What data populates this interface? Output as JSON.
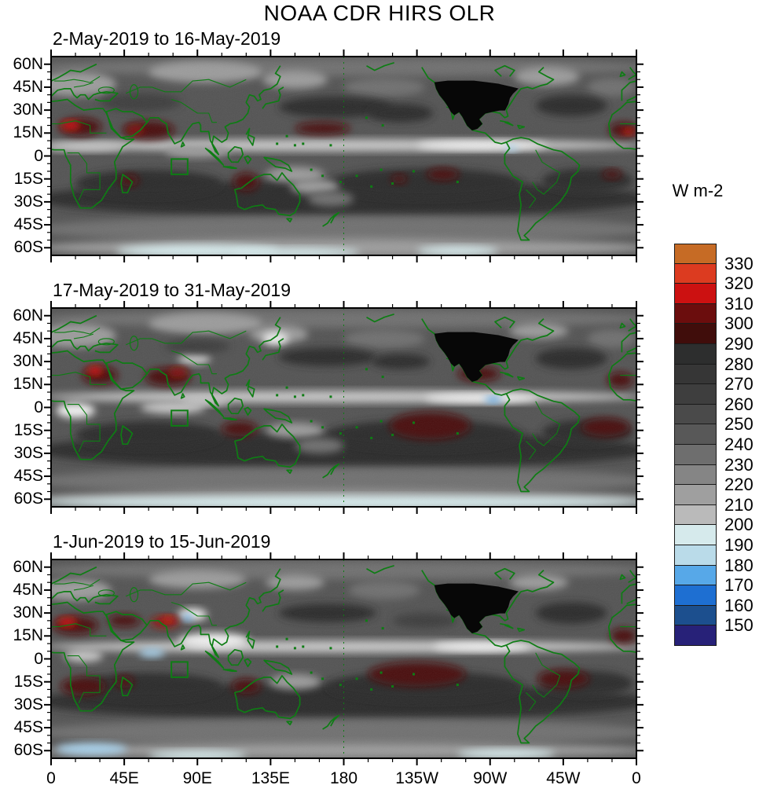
{
  "chart_data": {
    "type": "heatmap",
    "title": "NOAA CDR HIRS OLR",
    "grid": false,
    "panels": [
      {
        "label": "2-May-2019 to 16-May-2019",
        "features": [
          [
            180,
            58,
            190,
            6,
            "l1"
          ],
          [
            180,
            -28,
            190,
            12,
            "d2"
          ],
          [
            60,
            -18,
            45,
            9,
            "d2"
          ],
          [
            230,
            -18,
            60,
            10,
            "d2"
          ],
          [
            330,
            -16,
            28,
            8,
            "d2"
          ],
          [
            180,
            -48,
            190,
            9,
            "l1"
          ],
          [
            180,
            -60,
            190,
            6,
            "l2"
          ],
          [
            90,
            -62,
            50,
            4,
            "cy"
          ],
          [
            250,
            -62,
            25,
            3,
            "cy"
          ],
          [
            150,
            -63,
            40,
            3,
            "cy"
          ],
          [
            15,
            47,
            25,
            8,
            "l2"
          ],
          [
            95,
            55,
            35,
            7,
            "l2"
          ],
          [
            150,
            50,
            20,
            6,
            "l2"
          ],
          [
            205,
            45,
            25,
            6,
            "l1"
          ],
          [
            305,
            52,
            20,
            6,
            "l2"
          ],
          [
            345,
            45,
            15,
            6,
            "l1"
          ],
          [
            175,
            32,
            35,
            7,
            "d2"
          ],
          [
            215,
            28,
            20,
            6,
            "d2"
          ],
          [
            320,
            33,
            22,
            7,
            "d2"
          ],
          [
            55,
            35,
            25,
            6,
            "d1"
          ],
          [
            180,
            7,
            185,
            4,
            "l3"
          ],
          [
            265,
            7,
            40,
            3,
            "w"
          ],
          [
            20,
            6,
            25,
            3,
            "l3"
          ],
          [
            90,
            3,
            20,
            4,
            "l2"
          ],
          [
            283,
            5,
            4,
            2,
            "bl"
          ],
          [
            18,
            19,
            13,
            6,
            "r1"
          ],
          [
            12,
            20,
            6,
            3,
            "r3"
          ],
          [
            60,
            17,
            16,
            6,
            "r1"
          ],
          [
            52,
            17,
            5,
            3,
            "r2"
          ],
          [
            352,
            17,
            9,
            5,
            "r1"
          ],
          [
            355,
            16,
            4,
            2,
            "r3"
          ],
          [
            167,
            18,
            17,
            4,
            "r1"
          ],
          [
            120,
            -17,
            8,
            6,
            "r1"
          ],
          [
            48,
            -16,
            6,
            4,
            "r1"
          ],
          [
            241,
            -12,
            10,
            4,
            "r1"
          ],
          [
            214,
            -15,
            5,
            3,
            "r1"
          ],
          [
            345,
            -12,
            6,
            3,
            "r1"
          ],
          [
            150,
            -12,
            18,
            5,
            "l2"
          ],
          [
            162,
            -20,
            15,
            5,
            "l2"
          ],
          [
            172,
            -28,
            14,
            5,
            "l1"
          ]
        ]
      },
      {
        "label": "17-May-2019 to 31-May-2019",
        "features": [
          [
            180,
            58,
            190,
            6,
            "l1"
          ],
          [
            180,
            -28,
            190,
            12,
            "d2"
          ],
          [
            60,
            -18,
            45,
            9,
            "d2"
          ],
          [
            230,
            -18,
            60,
            10,
            "d2"
          ],
          [
            330,
            -16,
            28,
            8,
            "d2"
          ],
          [
            180,
            -48,
            190,
            9,
            "l1"
          ],
          [
            180,
            -60,
            190,
            6,
            "l2"
          ],
          [
            180,
            -62,
            190,
            4,
            "cy"
          ],
          [
            15,
            47,
            25,
            8,
            "l2"
          ],
          [
            95,
            55,
            35,
            7,
            "l2"
          ],
          [
            140,
            48,
            18,
            6,
            "l2"
          ],
          [
            205,
            45,
            25,
            6,
            "l1"
          ],
          [
            300,
            50,
            18,
            5,
            "l2"
          ],
          [
            345,
            45,
            15,
            6,
            "l1"
          ],
          [
            88,
            32,
            10,
            4,
            "l3"
          ],
          [
            138,
            45,
            8,
            4,
            "w"
          ],
          [
            170,
            33,
            30,
            6,
            "d2"
          ],
          [
            215,
            30,
            18,
            5,
            "d2"
          ],
          [
            320,
            32,
            22,
            7,
            "d2"
          ],
          [
            90,
            40,
            20,
            5,
            "d1"
          ],
          [
            180,
            7,
            185,
            4,
            "l3"
          ],
          [
            265,
            6,
            35,
            3,
            "w"
          ],
          [
            272,
            5,
            5,
            2,
            "bb"
          ],
          [
            15,
            -2,
            12,
            5,
            "w"
          ],
          [
            75,
            0,
            20,
            4,
            "l3"
          ],
          [
            95,
            4,
            15,
            3,
            "l3"
          ],
          [
            30,
            21,
            11,
            6,
            "r1"
          ],
          [
            27,
            24,
            5,
            3,
            "r3"
          ],
          [
            72,
            20,
            14,
            6,
            "r1"
          ],
          [
            78,
            23,
            6,
            3,
            "r2"
          ],
          [
            263,
            22,
            13,
            5,
            "r1"
          ],
          [
            350,
            18,
            8,
            5,
            "r1"
          ],
          [
            116,
            -14,
            11,
            5,
            "r1"
          ],
          [
            233,
            -12,
            25,
            9,
            "r1"
          ],
          [
            341,
            -13,
            15,
            6,
            "r1"
          ],
          [
            150,
            -15,
            18,
            5,
            "l2"
          ],
          [
            165,
            -25,
            15,
            5,
            "l1"
          ]
        ]
      },
      {
        "label": "1-Jun-2019 to 15-Jun-2019",
        "features": [
          [
            180,
            58,
            190,
            6,
            "l1"
          ],
          [
            180,
            -28,
            190,
            12,
            "d2"
          ],
          [
            60,
            -18,
            45,
            9,
            "d2"
          ],
          [
            230,
            -18,
            60,
            10,
            "d2"
          ],
          [
            330,
            -16,
            28,
            8,
            "d2"
          ],
          [
            180,
            -48,
            190,
            9,
            "l1"
          ],
          [
            180,
            -60,
            190,
            5,
            "l2"
          ],
          [
            25,
            -59,
            22,
            4,
            "bl"
          ],
          [
            90,
            -63,
            30,
            3,
            "cy"
          ],
          [
            280,
            -62,
            30,
            3,
            "cy"
          ],
          [
            15,
            45,
            22,
            7,
            "l2"
          ],
          [
            90,
            52,
            30,
            6,
            "l2"
          ],
          [
            150,
            50,
            18,
            5,
            "l2"
          ],
          [
            205,
            45,
            22,
            6,
            "l1"
          ],
          [
            300,
            50,
            18,
            5,
            "l2"
          ],
          [
            87,
            29,
            9,
            4,
            "w"
          ],
          [
            170,
            30,
            30,
            6,
            "d2"
          ],
          [
            230,
            25,
            20,
            5,
            "d1"
          ],
          [
            320,
            30,
            22,
            7,
            "d2"
          ],
          [
            180,
            8,
            185,
            4,
            "l3"
          ],
          [
            100,
            12,
            22,
            5,
            "w"
          ],
          [
            265,
            8,
            30,
            3,
            "w"
          ],
          [
            62,
            4,
            8,
            3,
            "bl"
          ],
          [
            84,
            27,
            3,
            2,
            "bb"
          ],
          [
            20,
            2,
            12,
            4,
            "l3"
          ],
          [
            15,
            22,
            14,
            6,
            "r1"
          ],
          [
            10,
            24,
            6,
            3,
            "r3"
          ],
          [
            45,
            25,
            10,
            4,
            "r1"
          ],
          [
            70,
            24,
            9,
            4,
            "r2"
          ],
          [
            72,
            26,
            4,
            2,
            "r3"
          ],
          [
            352,
            15,
            8,
            5,
            "r1"
          ],
          [
            20,
            -18,
            14,
            6,
            "r1"
          ],
          [
            45,
            -15,
            6,
            4,
            "r1"
          ],
          [
            120,
            -18,
            9,
            5,
            "r1"
          ],
          [
            225,
            -10,
            30,
            8,
            "r1"
          ],
          [
            315,
            -13,
            16,
            6,
            "r1"
          ],
          [
            150,
            -15,
            16,
            5,
            "l2"
          ]
        ]
      }
    ],
    "feature_format": [
      "center_lon_deg_east",
      "center_lat_deg",
      "radius_lon_deg",
      "radius_lat_deg",
      "palette_key"
    ],
    "palette": {
      "base": "#535353",
      "d1": "#3c3c3c",
      "d2": "#2b2b2b",
      "d3": "#202020",
      "l1": "#707070",
      "l2": "#9b9b9b",
      "l3": "#c6c6c6",
      "w": "#f0f0f0",
      "cy": "#d8edef",
      "bl": "#a6cfe9",
      "bb": "#4f9fe0",
      "r1": "#4a0c0a",
      "r2": "#8c120c",
      "r3": "#d11510"
    },
    "x_axis": {
      "tick_labels": [
        "0",
        "45E",
        "90E",
        "135E",
        "180",
        "135W",
        "90W",
        "45W",
        "0"
      ],
      "tick_values_deg": [
        0,
        45,
        90,
        135,
        180,
        225,
        270,
        315,
        360
      ],
      "minor_tick_every_deg": 15
    },
    "y_axis": {
      "tick_labels": [
        "60N",
        "45N",
        "30N",
        "15N",
        "0",
        "15S",
        "30S",
        "45S",
        "60S"
      ],
      "tick_values_deg": [
        60,
        45,
        30,
        15,
        0,
        -15,
        -30,
        -45,
        -60
      ],
      "minor_tick_every_deg": 5,
      "frame_range_deg": [
        65,
        -65
      ]
    },
    "colorbar": {
      "units": "W m-2",
      "orientation": "vertical",
      "tick_labels": [
        "330",
        "320",
        "310",
        "300",
        "290",
        "280",
        "270",
        "260",
        "250",
        "240",
        "230",
        "220",
        "210",
        "200",
        "190",
        "180",
        "170",
        "160",
        "150"
      ],
      "level_min": 150,
      "level_max": 330,
      "level_step": 10,
      "colors_top_to_bottom": [
        "#c66b25",
        "#dc3b20",
        "#cc1111",
        "#6b0d0d",
        "#400d0b",
        "#2d2e2e",
        "#363636",
        "#3e3e3e",
        "#4a4a4a",
        "#585858",
        "#6e6e6e",
        "#858585",
        "#9f9f9f",
        "#bababa",
        "#d6eaec",
        "#badbe9",
        "#57a8e8",
        "#1e6fd2",
        "#1c4f8e",
        "#272178"
      ]
    },
    "map_overlay": {
      "coastline_and_border_color": "#0e7d14",
      "us_region_filled_black": true,
      "dashed_meridian_deg": 180,
      "region_box": {
        "lon": [
          74,
          84
        ],
        "lat": [
          -2,
          -12
        ]
      }
    }
  }
}
